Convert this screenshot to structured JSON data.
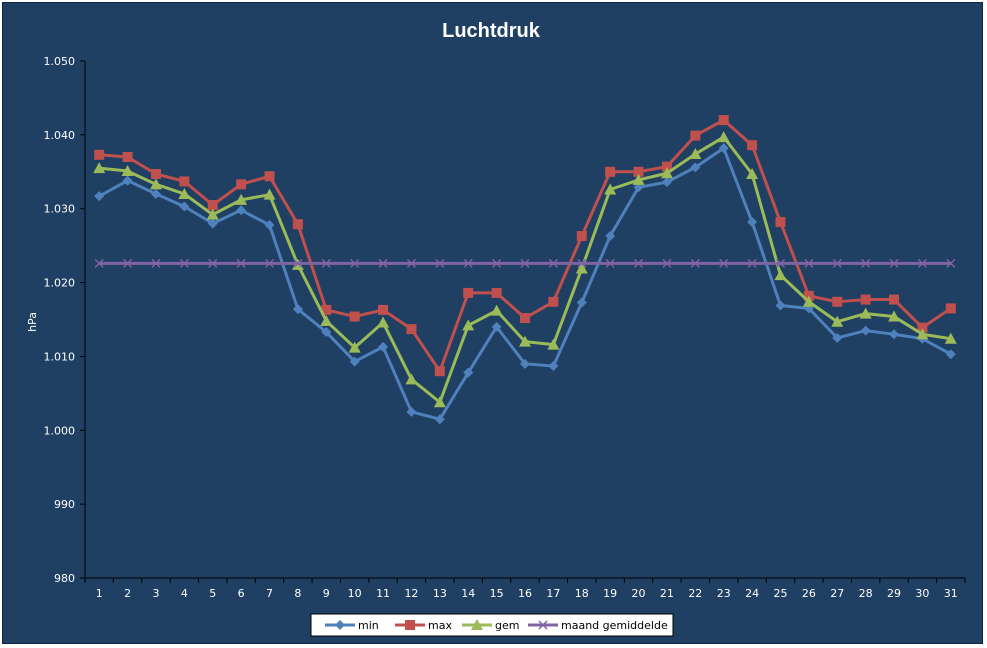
{
  "chart_data": {
    "type": "line",
    "title": "Luchtdruk",
    "xlabel": "",
    "ylabel": "hPa",
    "ylim": [
      980,
      1050
    ],
    "yticks": [
      980,
      990,
      1000,
      1010,
      1020,
      1030,
      1040,
      1050
    ],
    "ytick_labels": [
      "980",
      "990",
      "1.000",
      "1.010",
      "1.020",
      "1.030",
      "1.040",
      "1.050"
    ],
    "categories": [
      "1",
      "2",
      "3",
      "4",
      "5",
      "6",
      "7",
      "8",
      "9",
      "10",
      "11",
      "12",
      "13",
      "14",
      "15",
      "16",
      "17",
      "18",
      "19",
      "20",
      "21",
      "22",
      "23",
      "24",
      "25",
      "26",
      "27",
      "28",
      "29",
      "30",
      "31"
    ],
    "grid": false,
    "legend_position": "bottom",
    "series": [
      {
        "name": "min",
        "color": "#4f81bd",
        "marker": "diamond",
        "values": [
          1031.7,
          1033.8,
          1032.0,
          1030.3,
          1028.0,
          1029.8,
          1027.8,
          1016.4,
          1013.3,
          1009.3,
          1011.3,
          1002.5,
          1001.5,
          1007.8,
          1014.0,
          1009.0,
          1008.7,
          1017.3,
          1026.3,
          1032.9,
          1033.6,
          1035.6,
          1038.2,
          1028.2,
          1016.9,
          1016.5,
          1012.5,
          1013.5,
          1013.0,
          1012.4,
          1010.3
        ]
      },
      {
        "name": "max",
        "color": "#c0504d",
        "marker": "square",
        "values": [
          1037.3,
          1037.0,
          1034.7,
          1033.7,
          1030.5,
          1033.3,
          1034.4,
          1027.9,
          1016.3,
          1015.4,
          1016.3,
          1013.7,
          1008.0,
          1018.6,
          1018.6,
          1015.2,
          1017.4,
          1026.3,
          1035.0,
          1035.0,
          1035.7,
          1039.9,
          1042.0,
          1038.6,
          1028.2,
          1018.2,
          1017.4,
          1017.7,
          1017.7,
          1013.9,
          1016.5
        ]
      },
      {
        "name": "gem",
        "color": "#9bbb59",
        "marker": "triangle",
        "values": [
          1035.5,
          1035.1,
          1033.3,
          1032.0,
          1029.2,
          1031.2,
          1031.9,
          1022.4,
          1014.8,
          1011.2,
          1014.6,
          1006.9,
          1003.8,
          1014.2,
          1016.2,
          1012.0,
          1011.6,
          1021.9,
          1032.6,
          1033.9,
          1034.8,
          1037.4,
          1039.7,
          1034.7,
          1021.0,
          1017.4,
          1014.7,
          1015.8,
          1015.4,
          1013.0,
          1012.4
        ]
      },
      {
        "name": "maand gemiddelde",
        "color": "#8064a2",
        "marker": "x",
        "values": [
          1022.6,
          1022.6,
          1022.6,
          1022.6,
          1022.6,
          1022.6,
          1022.6,
          1022.6,
          1022.6,
          1022.6,
          1022.6,
          1022.6,
          1022.6,
          1022.6,
          1022.6,
          1022.6,
          1022.6,
          1022.6,
          1022.6,
          1022.6,
          1022.6,
          1022.6,
          1022.6,
          1022.6,
          1022.6,
          1022.6,
          1022.6,
          1022.6,
          1022.6,
          1022.6,
          1022.6
        ]
      }
    ]
  }
}
